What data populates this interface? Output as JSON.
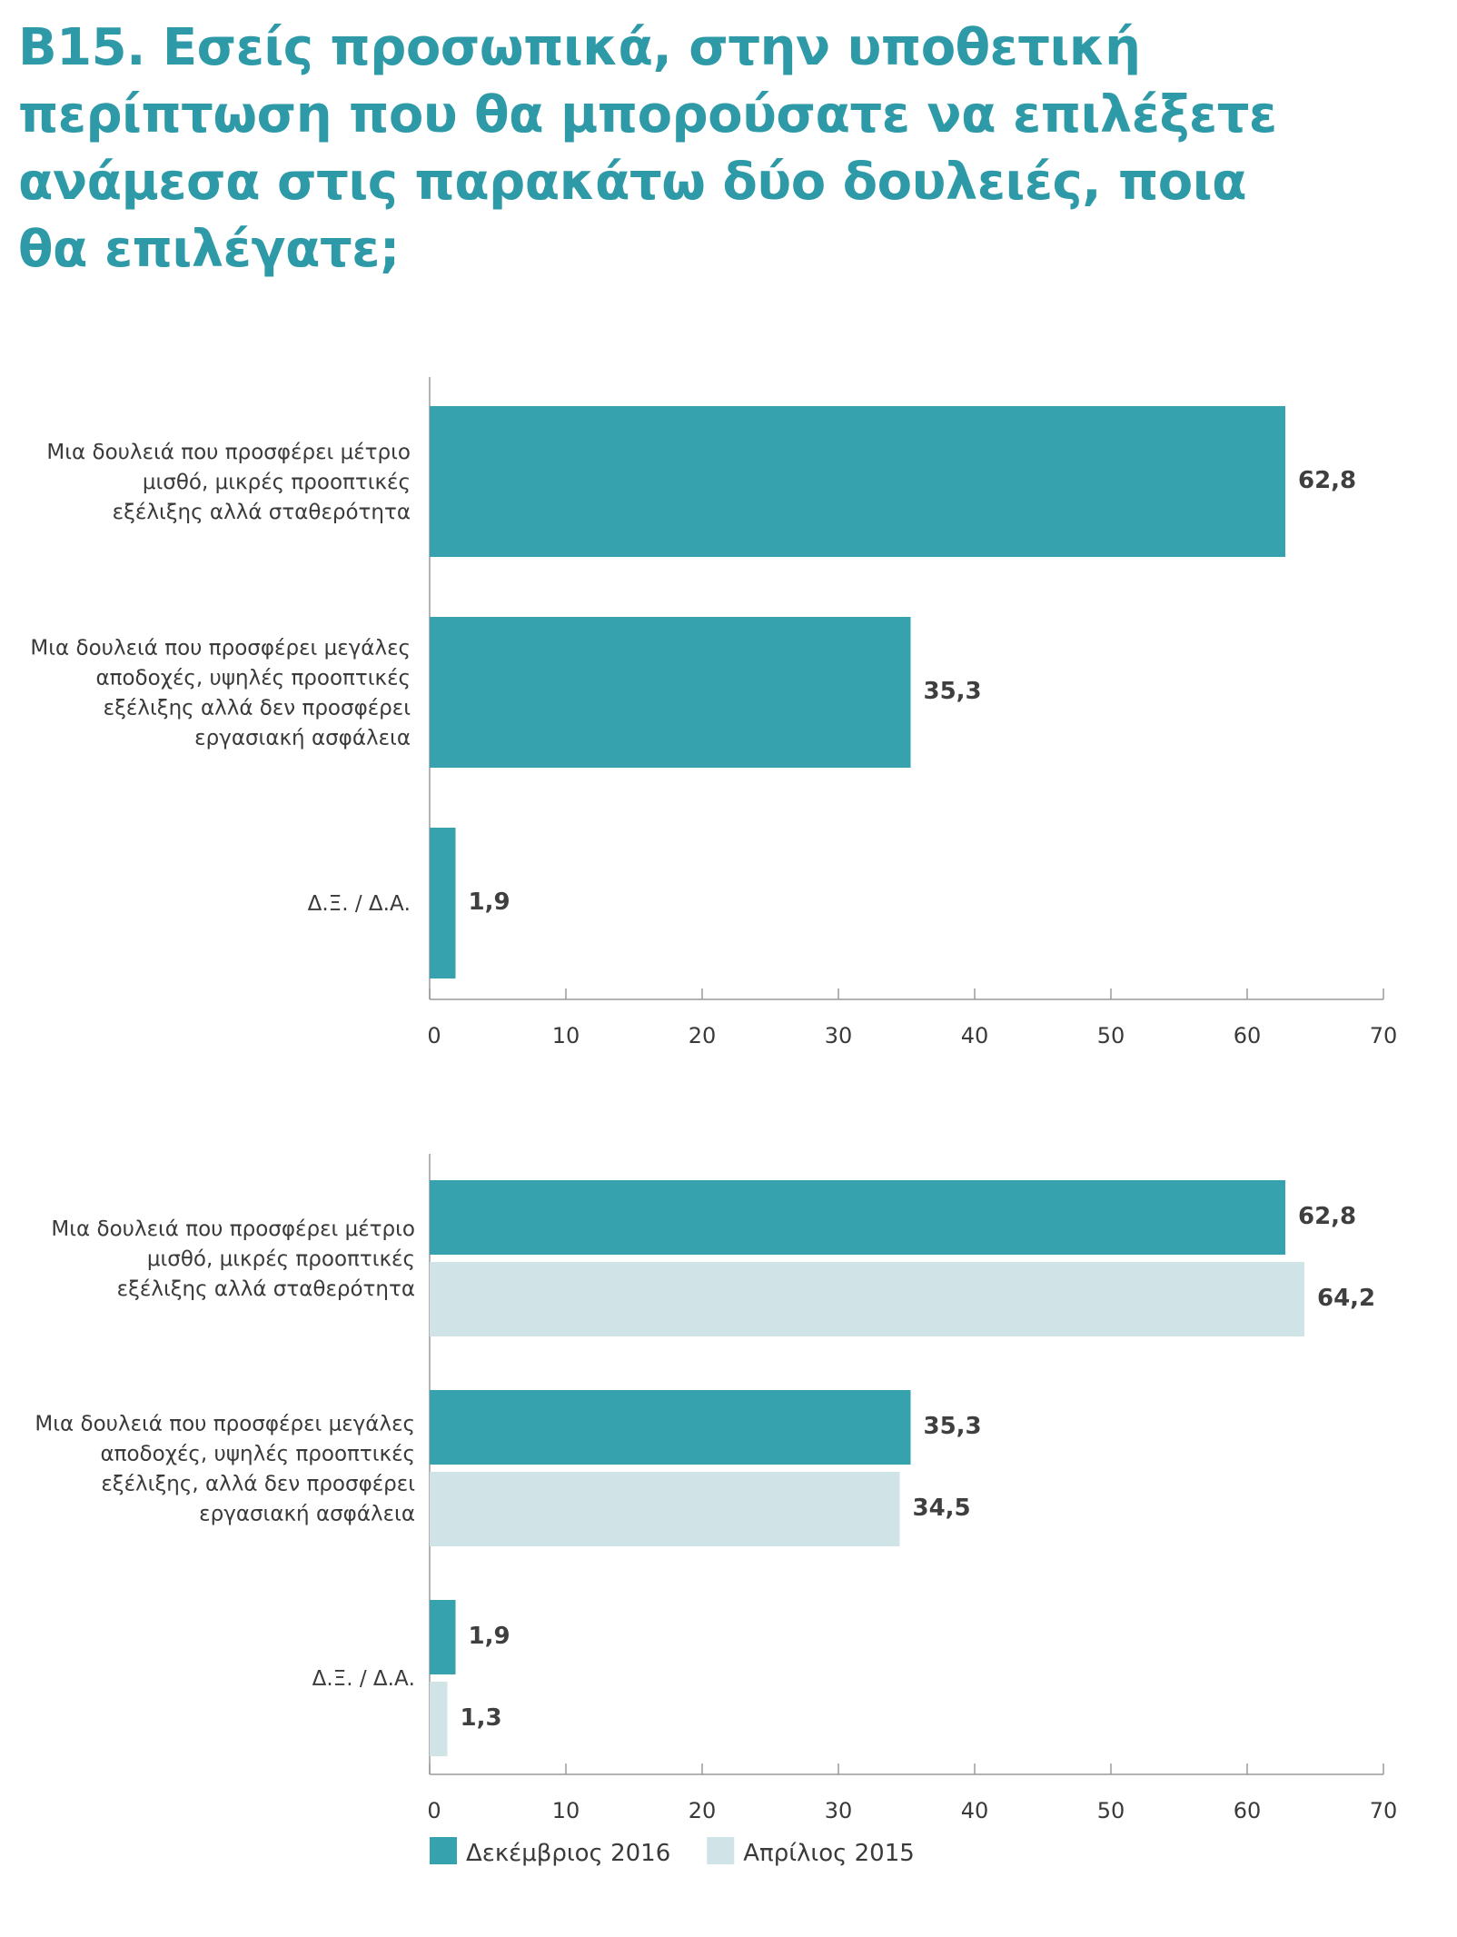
{
  "title": "B15. Εσείς προσωπικά, στην υποθετική περίπτωση που θα μπορούσατε να επιλέξετε ανάμεσα στις παρακάτω δύο δουλειές, ποια θα επιλέγατε;",
  "colors": {
    "primary": "#35a2ae",
    "secondary": "#d0e4e8",
    "title": "#2e9aa8"
  },
  "chart_data": [
    {
      "type": "bar",
      "orientation": "horizontal",
      "categories": [
        [
          "Μια δουλειά που προσφέρει μέτριο",
          "μισθό, μικρές προοπτικές",
          "εξέλιξης αλλά σταθερότητα"
        ],
        [
          "Μια δουλειά που προσφέρει μεγάλες",
          "αποδοχές, υψηλές προοπτικές",
          "εξέλιξης αλλά δεν προσφέρει",
          "εργασιακή ασφάλεια"
        ],
        [
          "Δ.Ξ. / Δ.Α."
        ]
      ],
      "series": [
        {
          "values": [
            62.8,
            35.3,
            1.9
          ],
          "labels": [
            "62,8",
            "35,3",
            "1,9"
          ],
          "color": "#35a2ae"
        }
      ],
      "xlim": [
        0,
        70
      ],
      "xticks": [
        "0",
        "10",
        "20",
        "30",
        "40",
        "50",
        "60",
        "70"
      ]
    },
    {
      "type": "bar",
      "orientation": "horizontal",
      "categories": [
        [
          "Μια δουλειά που προσφέρει μέτριο",
          "μισθό, μικρές προοπτικές",
          "εξέλιξης αλλά σταθερότητα"
        ],
        [
          "Μια δουλειά που προσφέρει μεγάλες",
          "αποδοχές, υψηλές προοπτικές",
          "εξέλιξης, αλλά δεν προσφέρει",
          "εργασιακή ασφάλεια"
        ],
        [
          "Δ.Ξ. / Δ.Α."
        ]
      ],
      "series": [
        {
          "name": "Δεκέμβριος 2016",
          "values": [
            62.8,
            35.3,
            1.9
          ],
          "labels": [
            "62,8",
            "35,3",
            "1,9"
          ],
          "color": "#35a2ae"
        },
        {
          "name": "Απρίλιος 2015",
          "values": [
            64.2,
            34.5,
            1.3
          ],
          "labels": [
            "64,2",
            "34,5",
            "1,3"
          ],
          "color": "#d0e4e8"
        }
      ],
      "xlim": [
        0,
        70
      ],
      "xticks": [
        "0",
        "10",
        "20",
        "30",
        "40",
        "50",
        "60",
        "70"
      ],
      "legend": "bottom-left"
    }
  ]
}
